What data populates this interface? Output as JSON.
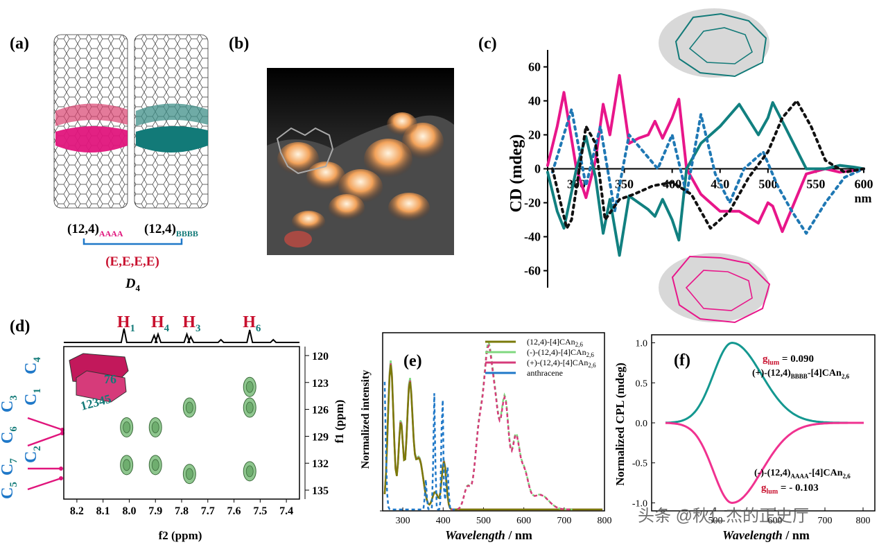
{
  "panels": {
    "a": {
      "label": "(a)",
      "left_tube": "(12,4)",
      "left_sub": "AAAA",
      "right_tube": "(12,4)",
      "right_sub": "BBBB",
      "config": "(E,E,E,E)",
      "symmetry": "D",
      "symmetry_sub": "4",
      "colors": {
        "pink": "#e0157c",
        "teal": "#127a78",
        "blue": "#1f78c8",
        "red": "#c8102e"
      }
    },
    "b": {
      "label": "(b)"
    },
    "c": {
      "label": "(c)"
    },
    "d": {
      "label": "(d)"
    },
    "e": {
      "label": "(e)"
    },
    "f": {
      "label": "(f)"
    }
  },
  "chart_data": [
    {
      "id": "c",
      "type": "line",
      "ylabel": "CD (mdeg)",
      "xunit": "nm",
      "xlim": [
        270,
        600
      ],
      "ylim": [
        -70,
        70
      ],
      "xticks": [
        300,
        350,
        400,
        450,
        500,
        550,
        600
      ],
      "yticks": [
        60,
        40,
        20,
        0,
        -20,
        -40,
        -60
      ],
      "series": [
        {
          "color": "#e8168a",
          "style": "solid",
          "x": [
            270,
            280,
            287,
            300,
            310,
            320,
            328,
            335,
            345,
            355,
            365,
            375,
            382,
            390,
            400,
            407,
            415,
            430,
            450,
            470,
            490,
            500,
            505,
            515,
            540,
            560,
            575,
            590,
            600
          ],
          "y": [
            2,
            25,
            45,
            0,
            -17,
            5,
            38,
            20,
            55,
            15,
            18,
            20,
            28,
            18,
            30,
            41,
            0,
            -15,
            -25,
            -25,
            -32,
            -20,
            -22,
            -37,
            -3,
            0,
            -2,
            -1,
            0
          ]
        },
        {
          "color": "#118080",
          "style": "solid",
          "x": [
            270,
            280,
            287,
            300,
            310,
            320,
            328,
            335,
            345,
            355,
            365,
            375,
            382,
            390,
            400,
            407,
            415,
            430,
            450,
            470,
            490,
            500,
            505,
            515,
            540,
            560,
            575,
            590,
            600
          ],
          "y": [
            -2,
            -25,
            -35,
            0,
            19,
            -5,
            -38,
            -18,
            -51,
            -16,
            -20,
            -24,
            -28,
            -18,
            -30,
            -42,
            0,
            15,
            25,
            38,
            20,
            30,
            39,
            28,
            0,
            0,
            2,
            1,
            0
          ]
        },
        {
          "color": "#1f78b4",
          "style": "dotted",
          "x": [
            275,
            295,
            310,
            325,
            340,
            355,
            370,
            385,
            400,
            415,
            430,
            445,
            460,
            475,
            495,
            510,
            525,
            540,
            560,
            580,
            600
          ],
          "y": [
            -2,
            35,
            -10,
            25,
            -25,
            20,
            10,
            0,
            20,
            -15,
            32,
            -3,
            -20,
            0,
            10,
            -10,
            -25,
            -38,
            -20,
            -5,
            0
          ]
        },
        {
          "color": "#111111",
          "style": "dotted",
          "x": [
            275,
            290,
            295,
            310,
            320,
            330,
            345,
            360,
            380,
            400,
            420,
            440,
            460,
            480,
            500,
            515,
            530,
            545,
            560,
            580,
            600
          ],
          "y": [
            0,
            -35,
            -30,
            25,
            15,
            -30,
            -18,
            -15,
            -10,
            -8,
            -15,
            -35,
            -25,
            -5,
            10,
            30,
            40,
            25,
            5,
            -2,
            0
          ]
        }
      ]
    },
    {
      "id": "d",
      "type": "heatmap",
      "xlabel": "f2 (ppm)",
      "ylabel": "f1 (ppm)",
      "xlim": [
        8.25,
        7.35
      ],
      "ylim": [
        119,
        136
      ],
      "xticks": [
        8.2,
        8.1,
        8.0,
        7.9,
        7.8,
        7.7,
        7.6,
        7.5,
        7.4
      ],
      "yticks": [
        120,
        123,
        126,
        129,
        132,
        135
      ],
      "peaks_1d": [
        {
          "ppm": 8.02,
          "label": "H",
          "sub": "1"
        },
        {
          "ppm": 7.89,
          "label": "H",
          "sub": "4"
        },
        {
          "ppm": 7.77,
          "label": "H",
          "sub": "3"
        },
        {
          "ppm": 7.54,
          "label": "H",
          "sub": "6"
        }
      ],
      "c_labels": [
        "C",
        "C",
        "C",
        "C",
        "C",
        "C",
        "C"
      ],
      "c_subs": [
        "4",
        "1",
        "3",
        "6",
        "2",
        "7",
        "5"
      ],
      "ring_numbers": [
        "76",
        "12345"
      ],
      "crosspeaks": [
        {
          "x": 7.54,
          "y": 123.5
        },
        {
          "x": 7.54,
          "y": 125.8
        },
        {
          "x": 7.77,
          "y": 125.8
        },
        {
          "x": 8.01,
          "y": 128.0
        },
        {
          "x": 7.9,
          "y": 128.0
        },
        {
          "x": 8.01,
          "y": 132.2
        },
        {
          "x": 7.9,
          "y": 132.2
        },
        {
          "x": 7.77,
          "y": 133.2
        },
        {
          "x": 7.54,
          "y": 132.9
        }
      ]
    },
    {
      "id": "e",
      "type": "line",
      "xlabel": "Wavelength / nm",
      "ylabel": "Normalized intensity",
      "xlim": [
        250,
        800
      ],
      "xticks": [
        300,
        400,
        500,
        600,
        700,
        800
      ],
      "legend": [
        {
          "name": "(12,4)-[4]CAn",
          "sub": "2,6",
          "color": "#7a7a0a"
        },
        {
          "name": "(-)-(12,4)-[4]CAn",
          "sub": "2,6",
          "color": "#7fd87f"
        },
        {
          "name": "(+)-(12,4)-[4]CAn",
          "sub": "2,6",
          "color": "#d63b7a"
        },
        {
          "name": "anthracene",
          "sub": "",
          "color": "#1f78c8"
        }
      ]
    },
    {
      "id": "f",
      "type": "line",
      "xlabel": "Wavelength / nm",
      "ylabel": "Normalized CPL (mdeg)",
      "ylim": [
        -1.1,
        1.1
      ],
      "yticks": [
        "1.0",
        "0.5",
        "0.0",
        "-0.5",
        "-1.0"
      ],
      "xticks": [
        "500",
        "600",
        "700",
        "800"
      ],
      "annotations": [
        {
          "g_label": "g",
          "g_sub": "lum",
          "value": " = 0.090",
          "text": "(+)-(12,4)",
          "sub1": "BBBB",
          "tail": "-[4]CAn",
          "sub2": "2,6"
        },
        {
          "g_label": "g",
          "g_sub": "lum",
          "value": " = - 0.103",
          "text": "(-)-(12,4)",
          "sub1": "AAAA",
          "tail": "-[4]CAn",
          "sub2": "2,6"
        }
      ],
      "series": [
        {
          "color": "#149890",
          "peak": 1.0
        },
        {
          "color": "#f03290",
          "peak": -1.0
        }
      ]
    }
  ],
  "watermark": "头条 @秋仁杰的正史厅"
}
